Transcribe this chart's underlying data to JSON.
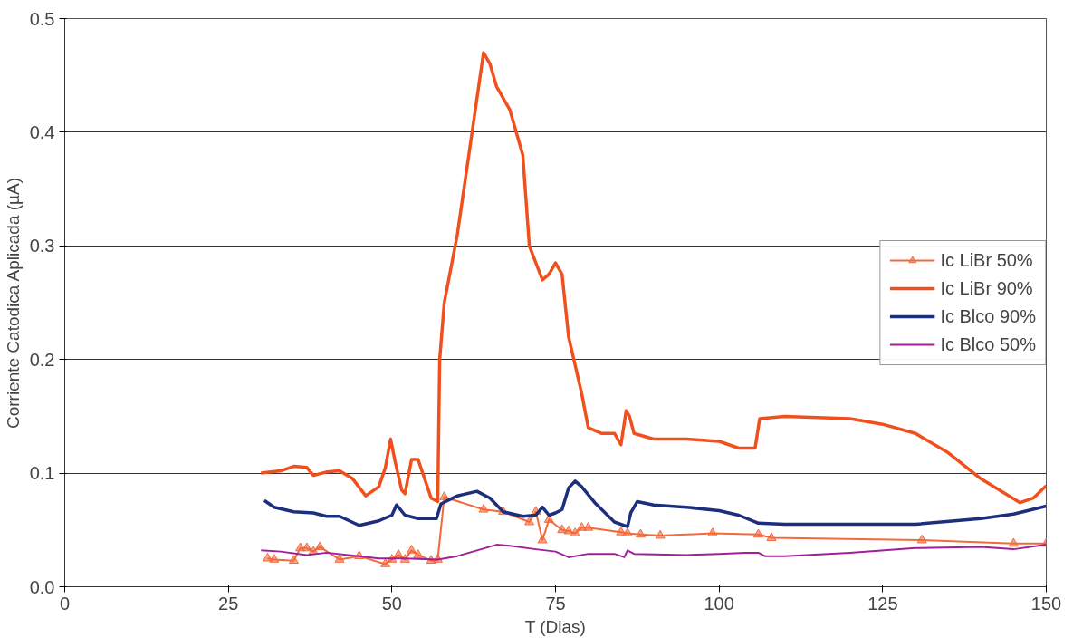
{
  "chart_data": {
    "type": "line",
    "xlabel": "T (Dias)",
    "ylabel": "Corriente Catodica Aplicada (µA)",
    "xlim": [
      0,
      150
    ],
    "xticks": [
      0,
      25,
      50,
      75,
      100,
      125,
      150
    ],
    "ylim": [
      0,
      0.5
    ],
    "yticks": [
      {
        "value": 0,
        "label": "0.0"
      },
      0.1,
      0.2,
      0.3,
      0.4,
      0.5
    ],
    "grid": "y",
    "legend": "right",
    "series": [
      {
        "name": "Ic LiBr 50%",
        "color": "#f26a3c",
        "marker": "triangle",
        "x": [
          31,
          32,
          35,
          36,
          37,
          38,
          39,
          42,
          45,
          49,
          50,
          51,
          52,
          53,
          54,
          56,
          57,
          58,
          64,
          67,
          71,
          72,
          73,
          74,
          76,
          77,
          78,
          79,
          80,
          85,
          86,
          88,
          91,
          99,
          106,
          108,
          131,
          145,
          150
        ],
        "values": [
          0.025,
          0.024,
          0.023,
          0.034,
          0.034,
          0.031,
          0.035,
          0.024,
          0.027,
          0.02,
          0.024,
          0.028,
          0.024,
          0.032,
          0.028,
          0.023,
          0.024,
          0.079,
          0.068,
          0.066,
          0.057,
          0.066,
          0.041,
          0.059,
          0.05,
          0.049,
          0.047,
          0.052,
          0.052,
          0.048,
          0.047,
          0.046,
          0.045,
          0.047,
          0.046,
          0.043,
          0.041,
          0.038,
          0.038
        ]
      },
      {
        "name": "Ic LiBr 90%",
        "color": "#f0501e",
        "marker": "none",
        "x": [
          30,
          33,
          35,
          37,
          38,
          40,
          42,
          44,
          46,
          48,
          49,
          49.8,
          50.5,
          51.5,
          52,
          53,
          54,
          55,
          56,
          57,
          57.3,
          58,
          60,
          62,
          64,
          65,
          66,
          68,
          70,
          71,
          72,
          73,
          74,
          75,
          76,
          77,
          78,
          79,
          80,
          82,
          84,
          85,
          85.8,
          86.3,
          87,
          90,
          95,
          100,
          103,
          105.5,
          106.2,
          110,
          120,
          125,
          130,
          135,
          140,
          146,
          148,
          150
        ],
        "values": [
          0.1,
          0.102,
          0.106,
          0.105,
          0.098,
          0.101,
          0.102,
          0.095,
          0.08,
          0.088,
          0.105,
          0.13,
          0.11,
          0.085,
          0.082,
          0.112,
          0.112,
          0.095,
          0.078,
          0.075,
          0.2,
          0.25,
          0.31,
          0.39,
          0.47,
          0.46,
          0.44,
          0.42,
          0.38,
          0.3,
          0.285,
          0.27,
          0.275,
          0.285,
          0.275,
          0.22,
          0.195,
          0.17,
          0.14,
          0.135,
          0.135,
          0.125,
          0.155,
          0.15,
          0.135,
          0.13,
          0.13,
          0.128,
          0.122,
          0.122,
          0.148,
          0.15,
          0.148,
          0.143,
          0.135,
          0.118,
          0.095,
          0.074,
          0.078,
          0.089
        ]
      },
      {
        "name": "Ic Blco 90%",
        "color": "#1c2f7c",
        "marker": "none",
        "x": [
          30.5,
          32,
          35,
          38,
          40,
          42,
          45,
          48,
          50,
          50.7,
          52,
          54,
          56,
          56.8,
          57.5,
          60,
          63,
          65,
          67,
          70,
          72,
          73,
          74,
          75,
          76,
          77,
          78,
          79,
          81,
          84,
          86,
          86.5,
          87.5,
          90,
          95,
          100,
          103,
          106,
          110,
          120,
          130,
          140,
          145,
          150
        ],
        "values": [
          0.076,
          0.07,
          0.066,
          0.065,
          0.062,
          0.062,
          0.054,
          0.058,
          0.063,
          0.072,
          0.063,
          0.06,
          0.06,
          0.06,
          0.073,
          0.08,
          0.084,
          0.078,
          0.066,
          0.062,
          0.063,
          0.07,
          0.063,
          0.065,
          0.068,
          0.087,
          0.093,
          0.088,
          0.074,
          0.057,
          0.053,
          0.065,
          0.075,
          0.072,
          0.07,
          0.067,
          0.063,
          0.056,
          0.055,
          0.055,
          0.055,
          0.06,
          0.064,
          0.071
        ]
      },
      {
        "name": "Ic Blco 50%",
        "color": "#a0209a",
        "marker": "none",
        "x": [
          30,
          33,
          37,
          40,
          45,
          48,
          52,
          57,
          60,
          63,
          66,
          68,
          72,
          75,
          77,
          80,
          84,
          85.5,
          86,
          87,
          95,
          100,
          104,
          106,
          107,
          110,
          120,
          130,
          140,
          145,
          150
        ],
        "values": [
          0.032,
          0.031,
          0.028,
          0.03,
          0.027,
          0.025,
          0.025,
          0.024,
          0.027,
          0.032,
          0.037,
          0.036,
          0.033,
          0.031,
          0.026,
          0.029,
          0.029,
          0.026,
          0.032,
          0.029,
          0.028,
          0.029,
          0.03,
          0.03,
          0.027,
          0.027,
          0.03,
          0.034,
          0.035,
          0.033,
          0.037
        ]
      }
    ]
  }
}
